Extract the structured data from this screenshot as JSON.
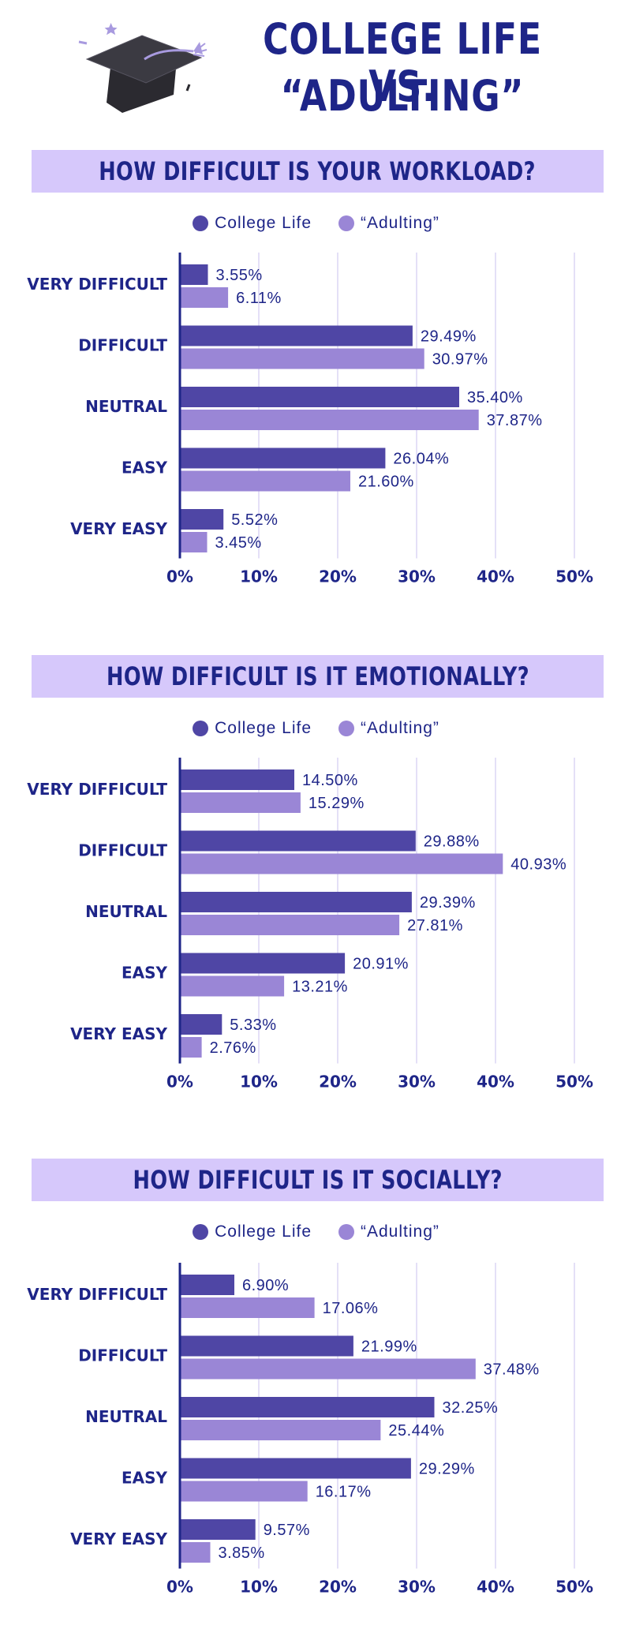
{
  "header": {
    "title_line1": "COLLEGE LIFE VS.",
    "title_line2": "“ADULTING”"
  },
  "colors": {
    "college": "#4f46a5",
    "adulting": "#9a86d6",
    "title": "#1e2588",
    "banner_bg": "#d6c8fb",
    "grid": "#e4e0f7"
  },
  "chart_data": [
    {
      "type": "bar",
      "orientation": "horizontal",
      "title": "HOW DIFFICULT IS YOUR WORKLOAD?",
      "categories": [
        "VERY DIFFICULT",
        "DIFFICULT",
        "NEUTRAL",
        "EASY",
        "VERY EASY"
      ],
      "series": [
        {
          "name": "College Life",
          "values": [
            3.55,
            29.49,
            35.4,
            26.04,
            5.52
          ]
        },
        {
          "name": "“Adulting”",
          "values": [
            6.11,
            30.97,
            37.87,
            21.6,
            3.45
          ]
        }
      ],
      "value_labels": [
        [
          "3.55%",
          "29.49%",
          "35.40%",
          "26.04%",
          "5.52%"
        ],
        [
          "6.11%",
          "30.97%",
          "37.87%",
          "21.60%",
          "3.45%"
        ]
      ],
      "xlim": [
        0,
        50
      ],
      "ticks": [
        "0%",
        "10%",
        "20%",
        "30%",
        "40%",
        "50%"
      ],
      "grid": true,
      "legend": "top-center"
    },
    {
      "type": "bar",
      "orientation": "horizontal",
      "title": "HOW DIFFICULT IS IT EMOTIONALLY?",
      "categories": [
        "VERY DIFFICULT",
        "DIFFICULT",
        "NEUTRAL",
        "EASY",
        "VERY EASY"
      ],
      "series": [
        {
          "name": "College Life",
          "values": [
            14.5,
            29.88,
            29.39,
            20.91,
            5.33
          ]
        },
        {
          "name": "“Adulting”",
          "values": [
            15.29,
            40.93,
            27.81,
            13.21,
            2.76
          ]
        }
      ],
      "value_labels": [
        [
          "14.50%",
          "29.88%",
          "29.39%",
          "20.91%",
          "5.33%"
        ],
        [
          "15.29%",
          "40.93%",
          "27.81%",
          "13.21%",
          "2.76%"
        ]
      ],
      "xlim": [
        0,
        50
      ],
      "ticks": [
        "0%",
        "10%",
        "20%",
        "30%",
        "40%",
        "50%"
      ],
      "grid": true,
      "legend": "top-center"
    },
    {
      "type": "bar",
      "orientation": "horizontal",
      "title": "HOW DIFFICULT IS IT SOCIALLY?",
      "categories": [
        "VERY DIFFICULT",
        "DIFFICULT",
        "NEUTRAL",
        "EASY",
        "VERY EASY"
      ],
      "series": [
        {
          "name": "College Life",
          "values": [
            6.9,
            21.99,
            32.25,
            29.29,
            9.57
          ]
        },
        {
          "name": "“Adulting”",
          "values": [
            17.06,
            37.48,
            25.44,
            16.17,
            3.85
          ]
        }
      ],
      "value_labels": [
        [
          "6.90%",
          "21.99%",
          "32.25%",
          "29.29%",
          "9.57%"
        ],
        [
          "17.06%",
          "37.48%",
          "25.44%",
          "16.17%",
          "3.85%"
        ]
      ],
      "xlim": [
        0,
        50
      ],
      "ticks": [
        "0%",
        "10%",
        "20%",
        "30%",
        "40%",
        "50%"
      ],
      "grid": true,
      "legend": "top-center"
    }
  ]
}
